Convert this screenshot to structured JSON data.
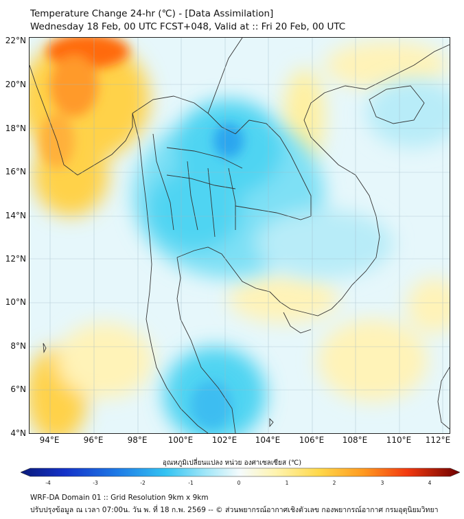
{
  "header": {
    "title_line1": "Temperature Change 24-hr (℃) - [Data Assimilation]",
    "title_line2": "Wednesday 18 Feb, 00 UTC FCST+048, Valid at :: Fri 20 Feb, 00 UTC"
  },
  "map": {
    "lat_labels": [
      "22°N",
      "20°N",
      "18°N",
      "16°N",
      "14°N",
      "12°N",
      "10°N",
      "8°N",
      "6°N",
      "4°N"
    ],
    "lon_labels": [
      "94°E",
      "96°E",
      "98°E",
      "100°E",
      "102°E",
      "104°E",
      "106°E",
      "108°E",
      "110°E",
      "112°E"
    ],
    "colors": {
      "background": "#e6f7fb",
      "cold_light": "#b8ecf8",
      "cold_mid": "#4fd4f2",
      "cold_strong": "#2aa6ef",
      "warm_light": "#fff3b8",
      "warm_mid": "#ffd24a",
      "warm_strong": "#ff8a1c",
      "hot": "#ff2a0a",
      "coastline": "#333333"
    }
  },
  "colorbar": {
    "title": "อุณหภูมิเปลี่ยนแปลง หน่วย องศาเซลเซียส (℃)",
    "ticks": [
      "-4",
      "-3",
      "-2",
      "-1",
      "0",
      "1",
      "2",
      "3",
      "4"
    ],
    "range": [
      -4,
      4
    ]
  },
  "footer": {
    "line1": "WRF-DA Domain 01 :: Grid Resolution 9km x 9km",
    "line2": "ปรับปรุงข้อมูล ณ เวลา 07:00น. วัน พ. ที่ 18 ก.พ. 2569 -- © ส่วนพยากรณ์อากาศเชิงตัวเลข กองพยากรณ์อากาศ กรมอุตุนิยมวิทยา"
  }
}
